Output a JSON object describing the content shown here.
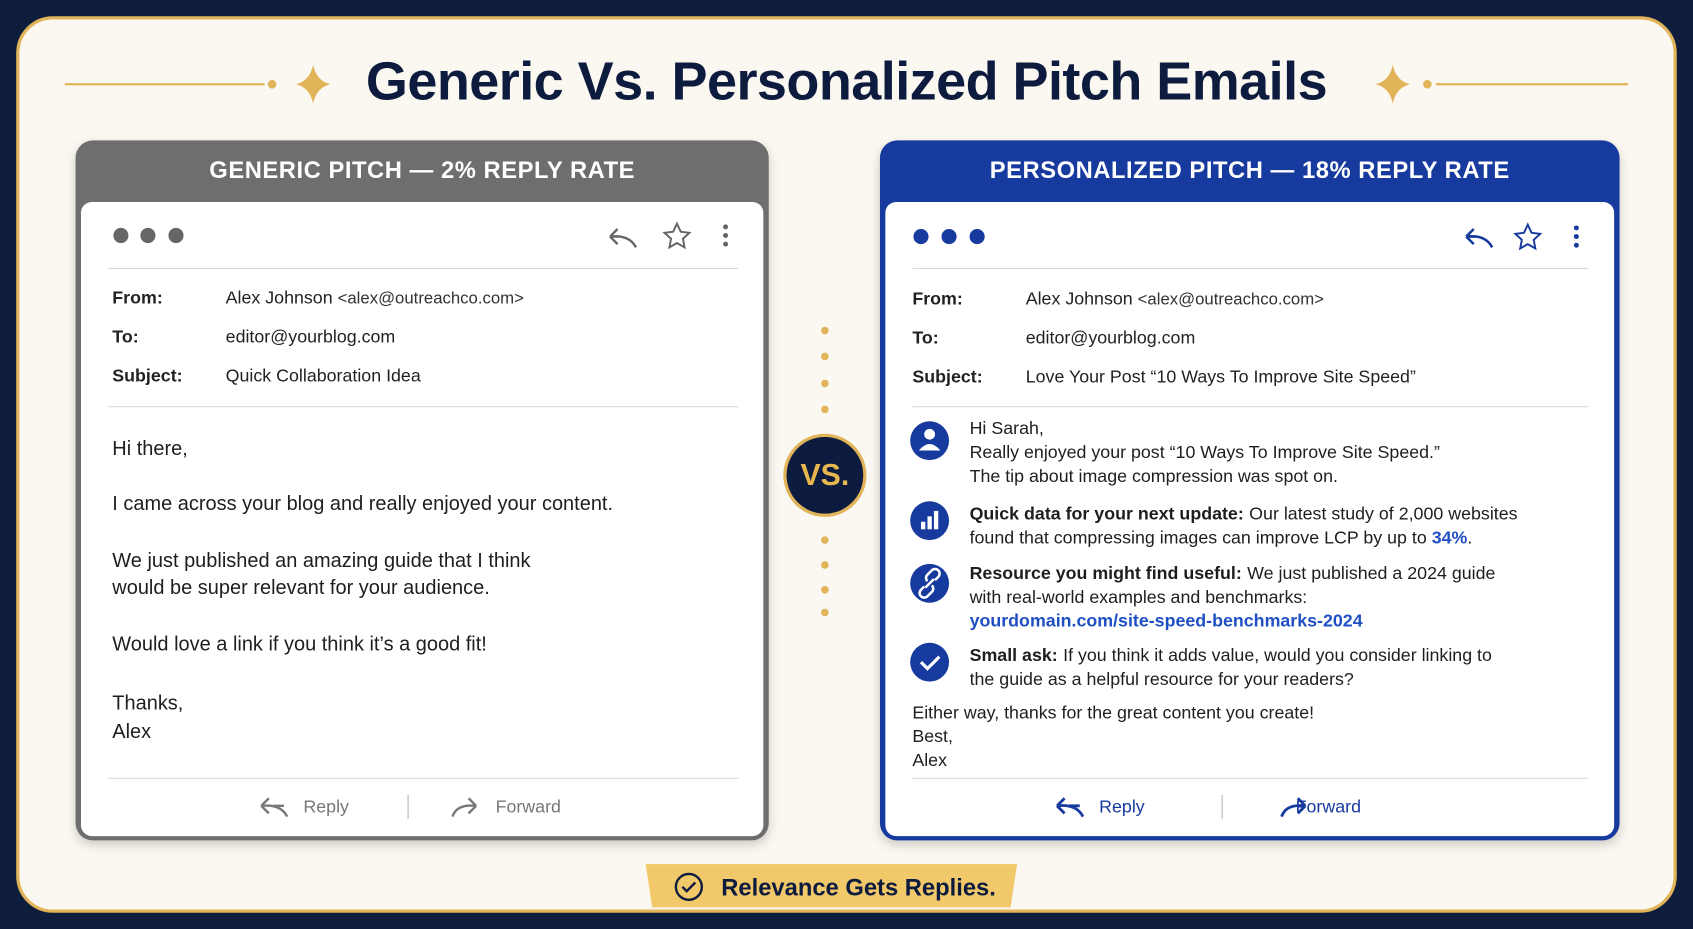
{
  "title": "Generic Vs. Personalized Pitch Emails",
  "generic": {
    "header": "GENERIC PITCH — 2% REPLY RATE",
    "from_label": "From:",
    "from_name": "Alex Johnson",
    "from_email": "<alex@outreachco.com>",
    "to_label": "To:",
    "to": "editor@yourblog.com",
    "subject_label": "Subject:",
    "subject": "Quick Collaboration Idea",
    "body": [
      "Hi there,",
      "I came across your blog and really enjoyed your content.",
      "We just published an amazing guide that I think",
      "would be super relevant for your audience.",
      "Would love a link if you think it’s a good fit!",
      "Thanks,",
      "Alex"
    ],
    "reply": "Reply",
    "forward": "Forward"
  },
  "vs": "VS.",
  "personalized": {
    "header": "PERSONALIZED PITCH — 18% REPLY RATE",
    "from_label": "From:",
    "from_name": "Alex Johnson",
    "from_email": "<alex@outreachco.com>",
    "to_label": "To:",
    "to": "editor@yourblog.com",
    "subject_label": "Subject:",
    "subject": "Love Your Post “10 Ways To Improve Site Speed”",
    "greeting": [
      "Hi Sarah,",
      "Really enjoyed your post “10 Ways To Improve Site Speed.”",
      "The tip about image compression was spot on."
    ],
    "data_point": {
      "bold": "Quick data for your next update:",
      "text": "Our latest study of 2,000 websites found that compressing images can improve LCP by up to",
      "accent": "34%",
      "tail": "."
    },
    "resource": {
      "bold": "Resource you might find useful:",
      "text": "We just published a 2024 guide with real-world examples and benchmarks:",
      "link": "yourdomain.com/site-speed-benchmarks-2024"
    },
    "ask": {
      "bold": "Small ask:",
      "text": "If you think it adds value, would you consider linking to the guide as a helpful resource for your readers?"
    },
    "closing": [
      "Either way, thanks for the great content you create!",
      "Best,",
      "Alex"
    ],
    "reply": "Reply",
    "forward": "Forward"
  },
  "footer": "Relevance Gets Replies."
}
